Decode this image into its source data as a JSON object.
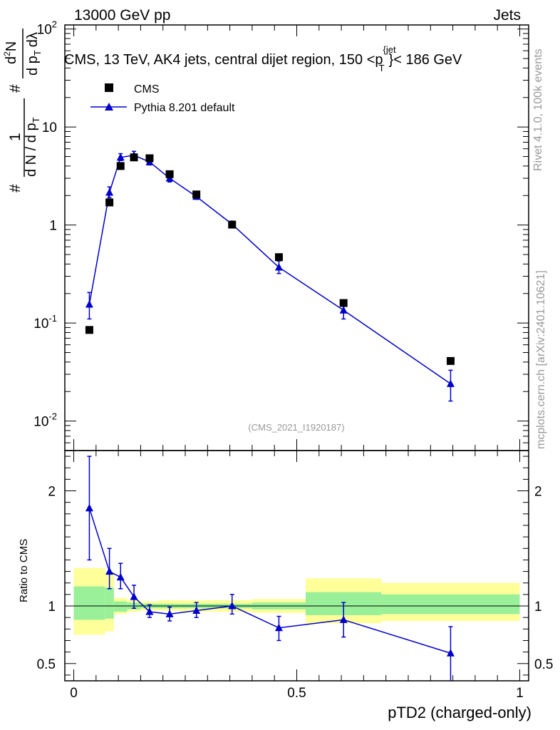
{
  "header": {
    "left": "13000 GeV pp",
    "right": "Jets",
    "title": "CMS, 13 TeV, AK4 jets, central dijet region, 150 <p",
    "title_sup": "{jet",
    "title_sub": "T",
    "title_end": "}< 186 GeV",
    "analysis_id": "(CMS_2021_I1920187)"
  },
  "side_text": {
    "rivet": "Rivet 4.1.0,  100k events",
    "mcplots": "mcplots.cern.ch [arXiv:2401.10621]"
  },
  "ylabel_main": {
    "line1": "#",
    "frac_num": "1",
    "frac_den": "d N / d p",
    "frac_den_sub": "T",
    "frac2_num_hash": "#",
    "frac2_num_d": "d",
    "frac2_num_sup": "2",
    "frac2_num_N": "N",
    "frac2_den": "d p",
    "frac2_den_sub": "T",
    "frac2_den_tail": "dλ"
  },
  "legend": [
    {
      "label": "CMS",
      "marker": "square",
      "color": "#000000"
    },
    {
      "label": "Pythia 8.201 default",
      "marker": "triangle",
      "color": "#0000cc"
    }
  ],
  "colors": {
    "mc": "#0000cc",
    "data": "#000000",
    "band_inner": "#99f099",
    "band_outer": "#ffff99",
    "watermark": "#999999"
  },
  "chart_data": [
    {
      "type": "scatter",
      "panel": "main",
      "ylabel": "# (1 / dN/dpT) d2N / dpT dlambda",
      "yscale": "log",
      "ylim": [
        0.005,
        110
      ],
      "xlim": [
        -0.02,
        1.02
      ],
      "ytick_labels": [
        "10^-2",
        "10^-1",
        "1",
        "10",
        "10^2"
      ],
      "ytick_values": [
        0.01,
        0.1,
        1,
        10,
        100
      ],
      "x": [
        0.035,
        0.08,
        0.105,
        0.135,
        0.17,
        0.215,
        0.275,
        0.355,
        0.46,
        0.605,
        0.845
      ],
      "series": [
        {
          "name": "CMS",
          "values": [
            0.085,
            1.7,
            4.0,
            4.9,
            4.8,
            3.3,
            2.05,
            1.01,
            0.47,
            0.16,
            0.041
          ]
        },
        {
          "name": "Pythia 8.201 default",
          "values": [
            0.155,
            2.15,
            4.9,
            5.15,
            4.4,
            3.0,
            1.95,
            1.02,
            0.37,
            0.135,
            0.024
          ],
          "err_low": [
            0.045,
            0.25,
            0.35,
            0.45,
            0.3,
            0.25,
            0.12,
            0.07,
            0.05,
            0.025,
            0.008
          ],
          "err_high": [
            0.05,
            0.3,
            0.45,
            0.5,
            0.35,
            0.25,
            0.15,
            0.07,
            0.06,
            0.03,
            0.009
          ]
        }
      ]
    },
    {
      "type": "scatter",
      "panel": "ratio",
      "ylabel": "Ratio to CMS",
      "xlabel": "pTD2 (charged-only)",
      "ylim": [
        0.35,
        2.35
      ],
      "xlim": [
        -0.02,
        1.02
      ],
      "ytick_labels": [
        "0.5",
        "1",
        "2"
      ],
      "ytick_values": [
        0.5,
        1,
        2
      ],
      "xtick_labels": [
        "0",
        "0.5",
        "1"
      ],
      "xtick_values": [
        0,
        0.5,
        1
      ],
      "x": [
        0.035,
        0.08,
        0.105,
        0.135,
        0.17,
        0.215,
        0.275,
        0.355,
        0.46,
        0.605,
        0.845
      ],
      "series": [
        {
          "name": "Pythia 8.201 default",
          "values": [
            1.85,
            1.3,
            1.25,
            1.08,
            0.95,
            0.93,
            0.96,
            1.0,
            0.81,
            0.88,
            0.59
          ],
          "err_low": [
            0.45,
            0.15,
            0.1,
            0.1,
            0.05,
            0.06,
            0.06,
            0.07,
            0.11,
            0.15,
            0.25
          ],
          "err_high": [
            0.45,
            0.2,
            0.12,
            0.1,
            0.06,
            0.06,
            0.07,
            0.1,
            0.1,
            0.15,
            0.23
          ]
        }
      ],
      "bands": {
        "edges": [
          0,
          0.07,
          0.09,
          0.12,
          0.15,
          0.19,
          0.24,
          0.31,
          0.4,
          0.52,
          0.69,
          1.0
        ],
        "inner_low": [
          0.88,
          0.89,
          0.95,
          0.97,
          0.98,
          0.98,
          0.98,
          0.98,
          0.97,
          0.92,
          0.93
        ],
        "inner_high": [
          1.17,
          1.16,
          1.04,
          1.03,
          1.02,
          1.02,
          1.02,
          1.02,
          1.03,
          1.12,
          1.1
        ],
        "outer_low": [
          0.75,
          0.78,
          0.93,
          0.95,
          0.96,
          0.96,
          0.95,
          0.95,
          0.94,
          0.85,
          0.87
        ],
        "outer_high": [
          1.33,
          1.3,
          1.07,
          1.05,
          1.04,
          1.05,
          1.05,
          1.05,
          1.06,
          1.24,
          1.2
        ]
      }
    }
  ]
}
